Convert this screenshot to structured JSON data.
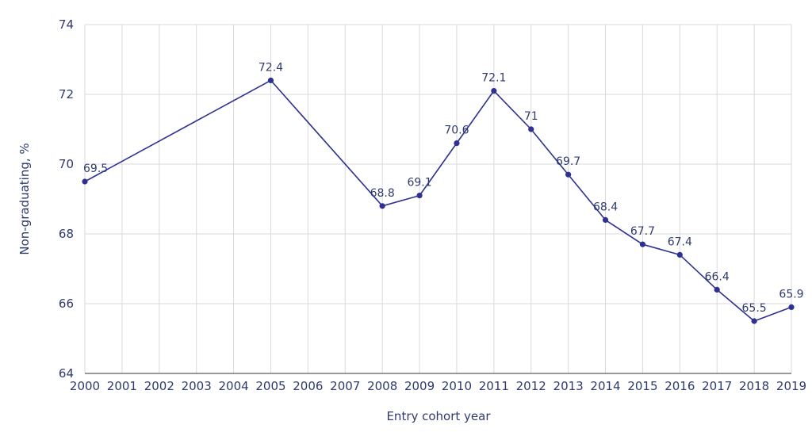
{
  "chart_data": {
    "type": "line",
    "title": "",
    "xlabel": "Entry cohort year",
    "ylabel": "Non-graduating, %",
    "x": [
      2000,
      2005,
      2008,
      2009,
      2010,
      2011,
      2012,
      2013,
      2014,
      2015,
      2016,
      2017,
      2018,
      2019
    ],
    "series": [
      {
        "values": [
          69.5,
          72.4,
          68.8,
          69.1,
          70.6,
          72.1,
          71,
          69.7,
          68.4,
          67.7,
          67.4,
          66.4,
          65.5,
          65.9
        ],
        "labels": [
          "69.5",
          "72.4",
          "68.8",
          "69.1",
          "70.6",
          "72.1",
          "71",
          "69.7",
          "68.4",
          "67.7",
          "67.4",
          "66.4",
          "65.5",
          "65.9"
        ]
      }
    ],
    "xticks": [
      "2000",
      "2001",
      "2002",
      "2003",
      "2004",
      "2005",
      "2006",
      "2007",
      "2008",
      "2009",
      "2010",
      "2011",
      "2012",
      "2013",
      "2014",
      "2015",
      "2016",
      "2017",
      "2018",
      "2019"
    ],
    "yticks": [
      "64",
      "66",
      "68",
      "70",
      "72",
      "74"
    ],
    "xlim": [
      2000,
      2019
    ],
    "ylim": [
      64,
      74
    ],
    "grid": true,
    "legend": "none",
    "colors": {
      "line": "#2e3192",
      "text": "#2e3a6e",
      "grid": "#d9d9d9",
      "axis": "#333333"
    }
  }
}
